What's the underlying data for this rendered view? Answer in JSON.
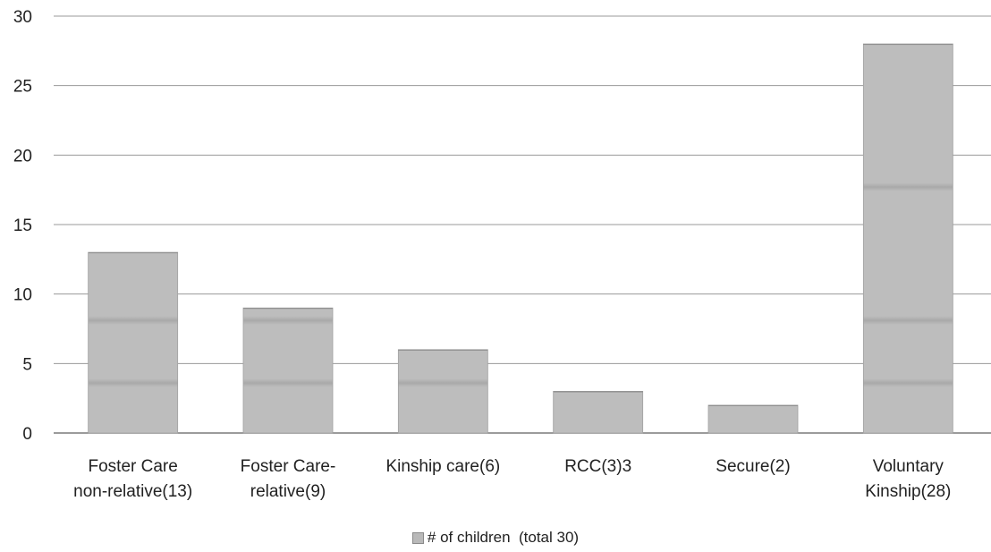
{
  "chart_data": {
    "type": "bar",
    "categories": [
      [
        "Foster Care",
        "non-relative(13)"
      ],
      [
        "Foster Care-",
        "relative(9)"
      ],
      [
        "Kinship care(6)"
      ],
      [
        "RCC(3)3"
      ],
      [
        "Secure(2)"
      ],
      [
        "Voluntary",
        "Kinship(28)"
      ]
    ],
    "series": [
      {
        "name": "# of children  (total 30)",
        "values": [
          13,
          9,
          6,
          3,
          2,
          28
        ]
      }
    ],
    "ylim": [
      0,
      30
    ],
    "yticks": [
      0,
      5,
      10,
      15,
      20,
      25,
      30
    ],
    "grid": true,
    "legend_position": "bottom",
    "colors": {
      "bar": "#bdbdbd",
      "bar_band": "#a9a9a9",
      "grid": "#9a9a9a",
      "axis": "#7a7a7a"
    }
  }
}
